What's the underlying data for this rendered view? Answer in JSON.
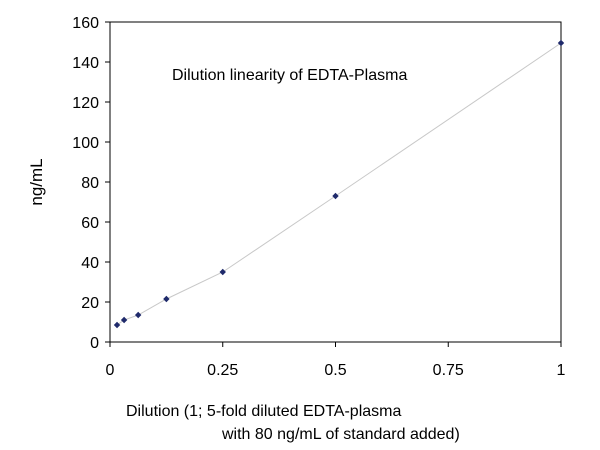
{
  "chart_data": {
    "type": "scatter",
    "annotation": "Dilution linearity of EDTA-Plasma",
    "ylabel": "ng/mL",
    "xlabel_lines": [
      "Dilution (1; 5-fold diluted EDTA-plasma",
      "with 80 ng/mL of standard added)"
    ],
    "xlim": [
      0,
      1
    ],
    "ylim": [
      0,
      160
    ],
    "x_ticks": [
      0,
      0.25,
      0.5,
      0.75,
      1
    ],
    "x_tick_labels": [
      "0",
      "0.25",
      "0.5",
      "0.75",
      "1"
    ],
    "y_ticks": [
      0,
      20,
      40,
      60,
      80,
      100,
      120,
      140,
      160
    ],
    "y_tick_labels": [
      "0",
      "20",
      "40",
      "60",
      "80",
      "100",
      "120",
      "140",
      "160"
    ],
    "connected": true,
    "grid": false,
    "marker_color": "#1f2a6b",
    "line_color": "#c8c8c8",
    "series": [
      {
        "x": [
          0.0156,
          0.03125,
          0.0625,
          0.125,
          0.25,
          0.5,
          1
        ],
        "y": [
          8.5,
          11,
          13.5,
          21.5,
          35,
          73,
          149.5
        ]
      }
    ]
  }
}
